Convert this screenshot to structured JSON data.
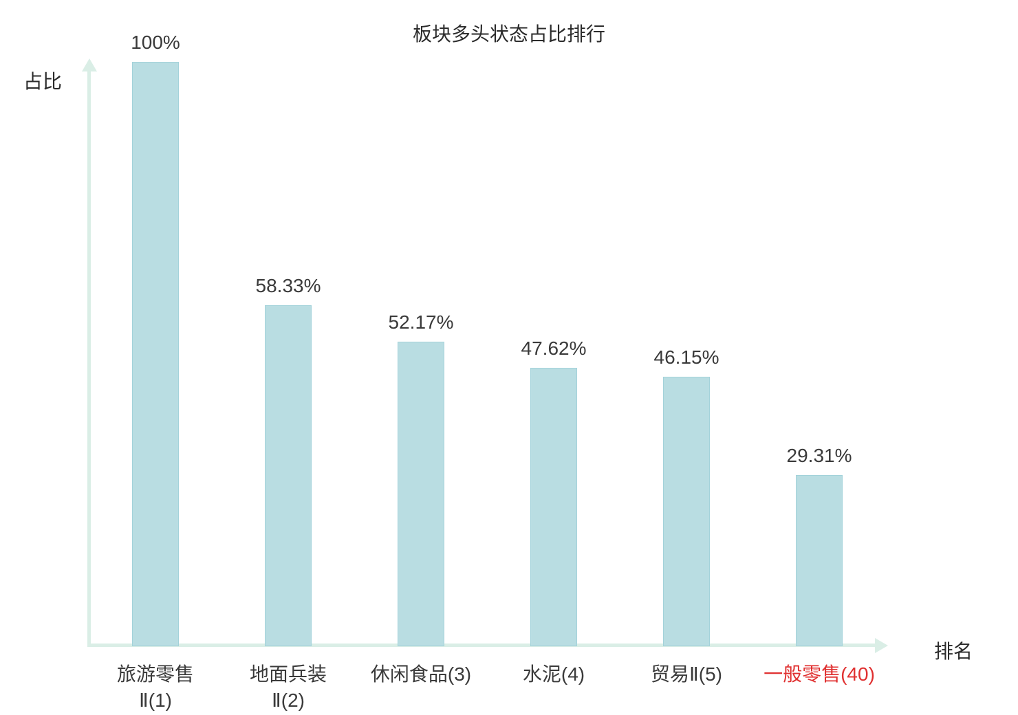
{
  "chart_data": {
    "type": "bar",
    "title": "板块多头状态占比排行",
    "xlabel": "排名",
    "ylabel": "占比",
    "categories": [
      {
        "lines": [
          "旅游零售",
          "Ⅱ(1)"
        ],
        "highlight": false
      },
      {
        "lines": [
          "地面兵装",
          "Ⅱ(2)"
        ],
        "highlight": false
      },
      {
        "lines": [
          "休闲食品(3)"
        ],
        "highlight": false
      },
      {
        "lines": [
          "水泥(4)"
        ],
        "highlight": false
      },
      {
        "lines": [
          "贸易Ⅱ(5)"
        ],
        "highlight": false
      },
      {
        "lines": [
          "一般零售(40)"
        ],
        "highlight": true
      }
    ],
    "values": [
      100,
      58.33,
      52.17,
      47.62,
      46.15,
      29.31
    ],
    "value_labels": [
      "100%",
      "58.33%",
      "52.17%",
      "47.62%",
      "46.15%",
      "29.31%"
    ],
    "ylim": [
      0,
      100
    ],
    "grid": false,
    "legend": "none",
    "bar_color": "#b9dde2",
    "bar_border_color": "#a3d2da",
    "axis_color": "#daeee6",
    "label_color": "#3a3a3a",
    "highlight_color": "#e03131"
  }
}
